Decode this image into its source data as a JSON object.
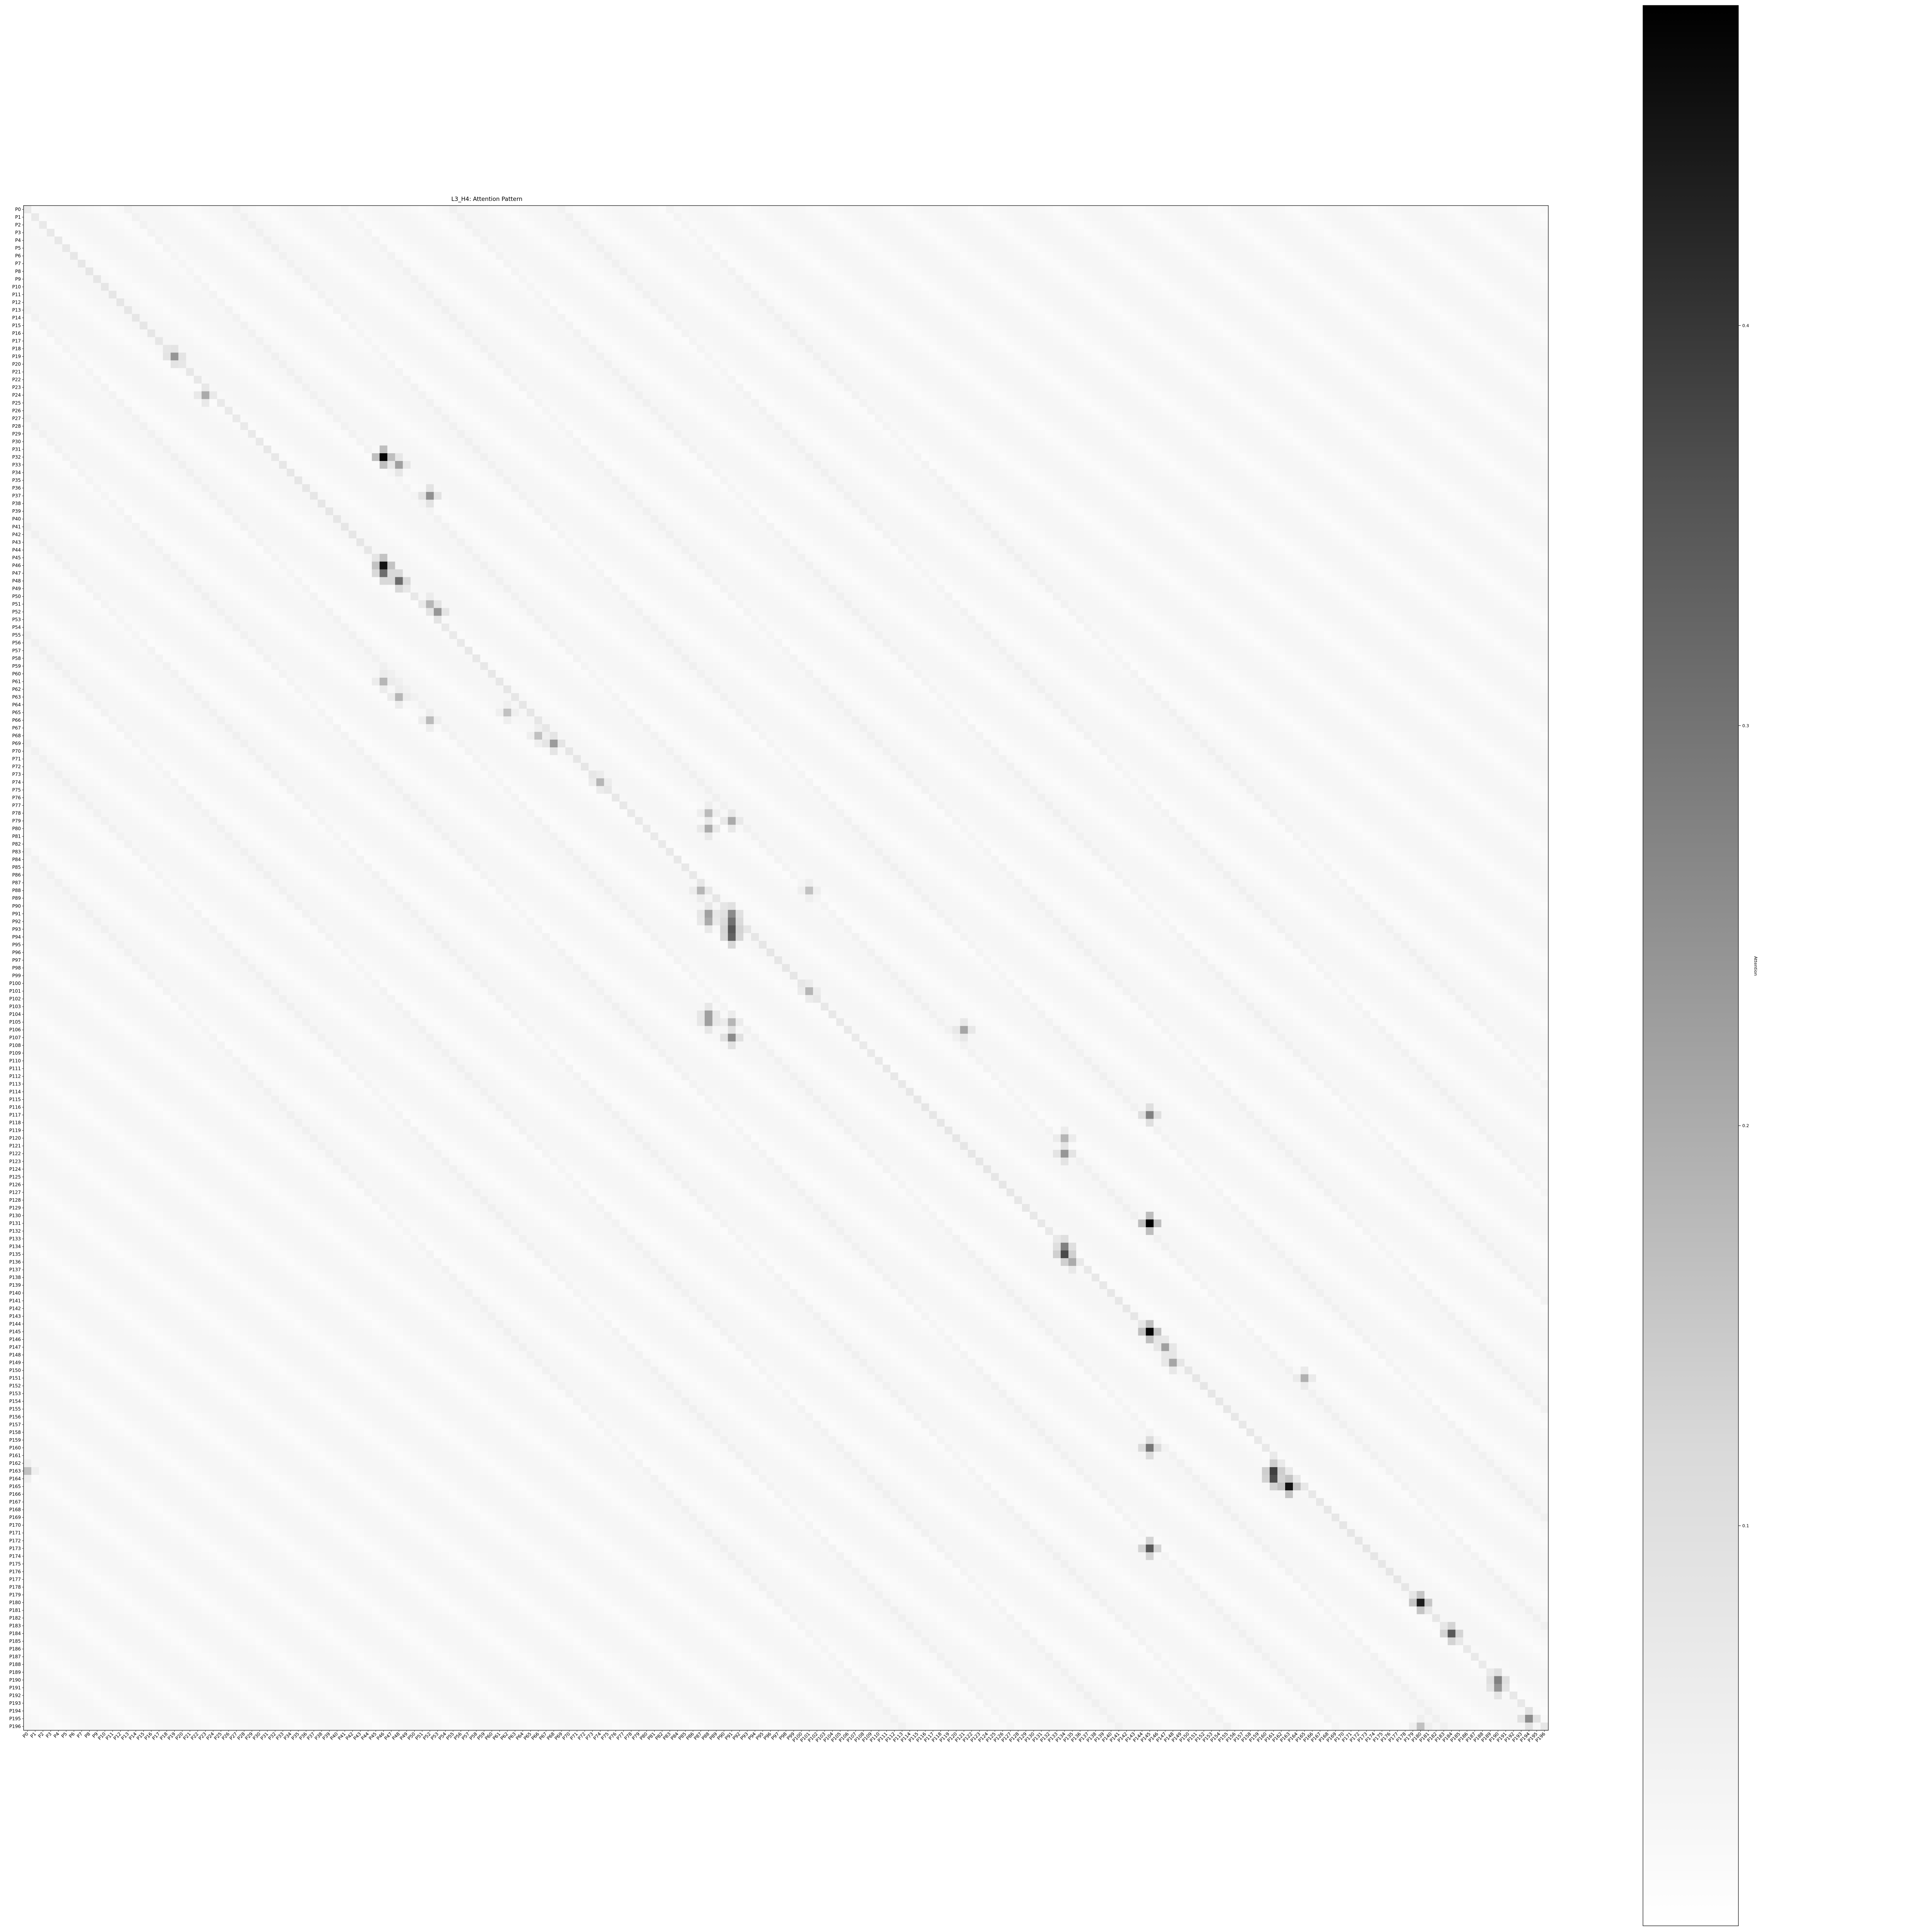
{
  "chart_data": {
    "type": "heatmap",
    "title": "L3_H4: Attention Pattern",
    "colorbar_label": "Attention",
    "colormap": "Greys",
    "value_range": [
      0,
      0.48
    ],
    "colorbar_ticks": [
      0.1,
      0.2,
      0.3,
      0.4
    ],
    "colorbar_tick_labels": [
      "0.1",
      "0.2",
      "0.3",
      "0.4"
    ],
    "n_tokens": 197,
    "label_prefix": "P",
    "x_tick_labels": "P0 … P196",
    "y_tick_labels": "P0 … P196",
    "grid": false,
    "background_value": 0.012,
    "bright_cells": [
      [
        32,
        46,
        0.47
      ],
      [
        33,
        48,
        0.16
      ],
      [
        46,
        46,
        0.44
      ],
      [
        47,
        46,
        0.26
      ],
      [
        48,
        48,
        0.26
      ],
      [
        19,
        19,
        0.18
      ],
      [
        24,
        23,
        0.14
      ],
      [
        37,
        52,
        0.19
      ],
      [
        52,
        53,
        0.18
      ],
      [
        51,
        52,
        0.12
      ],
      [
        61,
        46,
        0.12
      ],
      [
        63,
        48,
        0.12
      ],
      [
        65,
        62,
        0.1
      ],
      [
        68,
        66,
        0.1
      ],
      [
        69,
        68,
        0.17
      ],
      [
        66,
        52,
        0.11
      ],
      [
        74,
        74,
        0.12
      ],
      [
        78,
        88,
        0.11
      ],
      [
        79,
        91,
        0.14
      ],
      [
        80,
        88,
        0.14
      ],
      [
        88,
        87,
        0.12
      ],
      [
        88,
        101,
        0.1
      ],
      [
        91,
        88,
        0.16
      ],
      [
        92,
        88,
        0.14
      ],
      [
        91,
        91,
        0.2
      ],
      [
        92,
        91,
        0.25
      ],
      [
        93,
        91,
        0.3
      ],
      [
        94,
        91,
        0.28
      ],
      [
        101,
        101,
        0.12
      ],
      [
        104,
        88,
        0.16
      ],
      [
        105,
        88,
        0.16
      ],
      [
        105,
        91,
        0.12
      ],
      [
        107,
        91,
        0.2
      ],
      [
        106,
        121,
        0.15
      ],
      [
        117,
        145,
        0.22
      ],
      [
        120,
        134,
        0.12
      ],
      [
        122,
        134,
        0.18
      ],
      [
        131,
        145,
        0.48
      ],
      [
        134,
        134,
        0.22
      ],
      [
        135,
        134,
        0.33
      ],
      [
        136,
        135,
        0.14
      ],
      [
        145,
        145,
        0.47
      ],
      [
        147,
        147,
        0.16
      ],
      [
        149,
        148,
        0.15
      ],
      [
        151,
        165,
        0.13
      ],
      [
        160,
        145,
        0.24
      ],
      [
        163,
        161,
        0.35
      ],
      [
        164,
        161,
        0.32
      ],
      [
        165,
        163,
        0.44
      ],
      [
        173,
        145,
        0.3
      ],
      [
        180,
        180,
        0.42
      ],
      [
        184,
        184,
        0.3
      ],
      [
        190,
        190,
        0.22
      ],
      [
        191,
        190,
        0.18
      ],
      [
        195,
        194,
        0.2
      ],
      [
        163,
        0,
        0.1
      ],
      [
        196,
        180,
        0.1
      ]
    ],
    "diagonal_stripe_offsets": [
      0,
      13,
      27,
      41,
      55,
      69,
      83
    ]
  }
}
